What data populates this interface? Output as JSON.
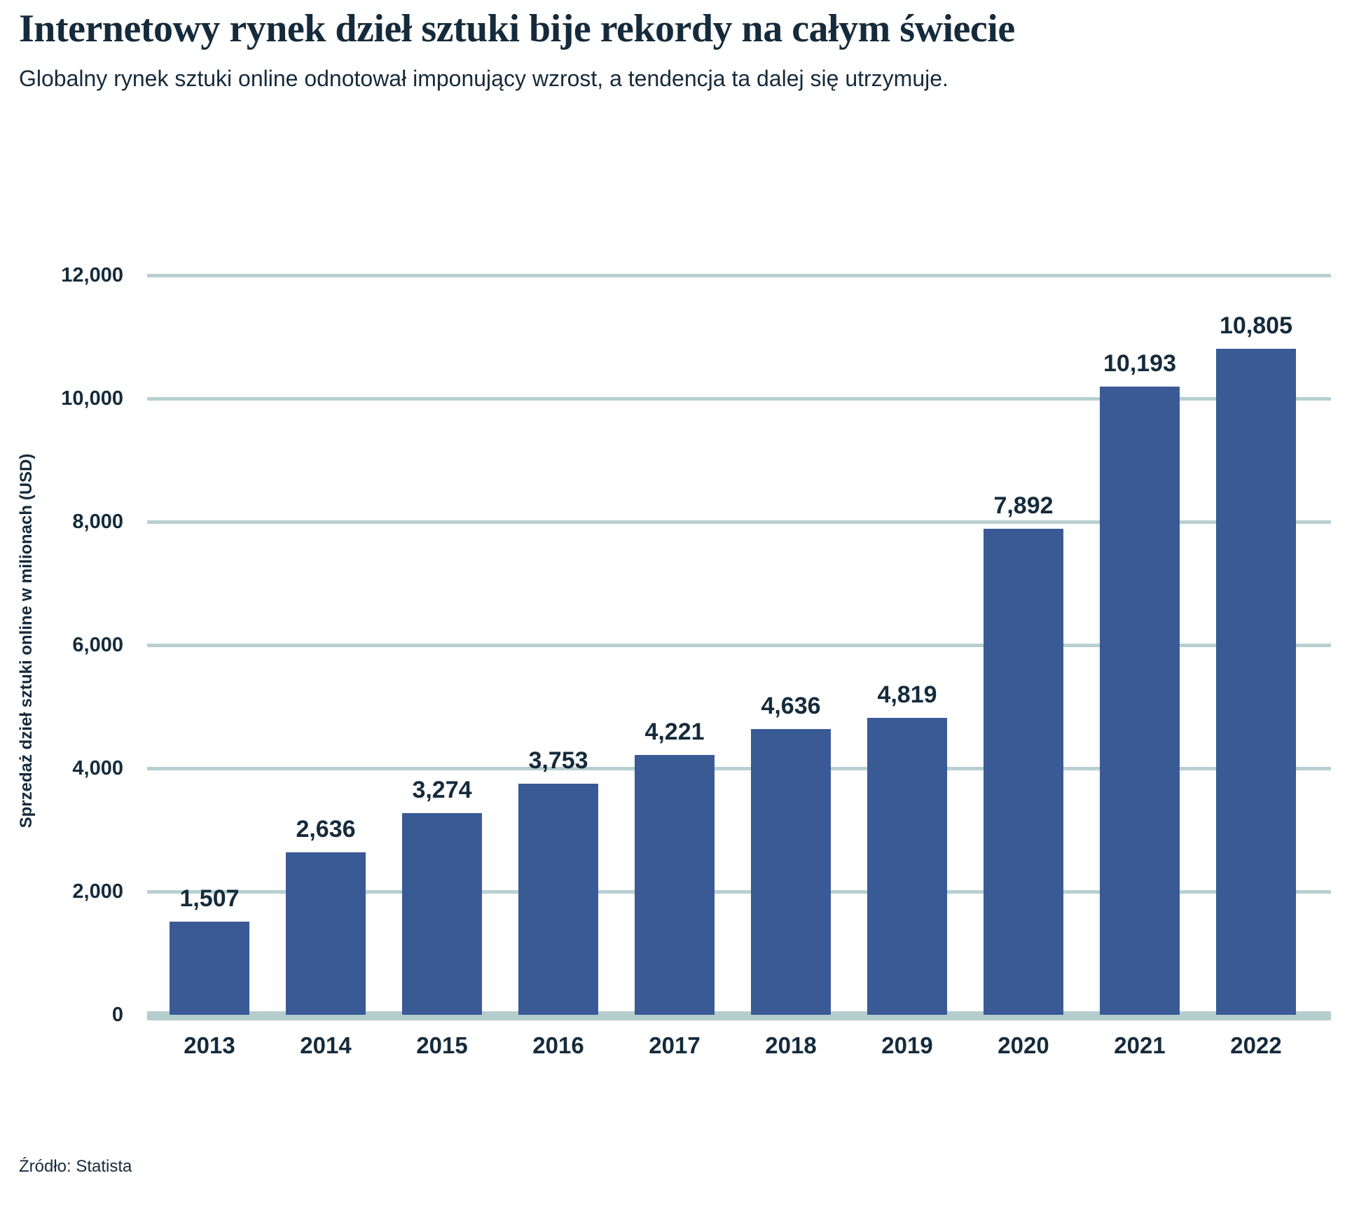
{
  "chart_data": {
    "type": "bar",
    "title": "Internetowy rynek dzieł sztuki bije rekordy na całym świecie",
    "subtitle": "Globalny rynek sztuki online odnotował imponujący wzrost, a tendencja ta dalej się utrzymuje.",
    "ylabel": "Sprzedaż dzieł sztuki online w milionach (USD)",
    "xlabel": "",
    "source": "Źródło: Statista",
    "categories": [
      "2013",
      "2014",
      "2015",
      "2016",
      "2017",
      "2018",
      "2019",
      "2020",
      "2021",
      "2022"
    ],
    "values": [
      1507,
      2636,
      3274,
      3753,
      4221,
      4636,
      4819,
      7892,
      10193,
      10805
    ],
    "data_labels": [
      "1,507",
      "2,636",
      "3,274",
      "3,753",
      "4,221",
      "4,636",
      "4,819",
      "7,892",
      "10,193",
      "10,805"
    ],
    "ytick_values": [
      12000,
      10000,
      8000,
      6000,
      4000,
      2000,
      0
    ],
    "ytick_labels": [
      "12,000",
      "10,000",
      "8,000",
      "6,000",
      "4,000",
      "2,000",
      "0"
    ],
    "ylim": [
      0,
      12000
    ],
    "grid": "horizontal",
    "legend": "none",
    "colors": {
      "bar": "#3a5a96",
      "grid": "#b8cfd0",
      "baseline": "#b5cdcd",
      "text": "#152b3c"
    }
  }
}
